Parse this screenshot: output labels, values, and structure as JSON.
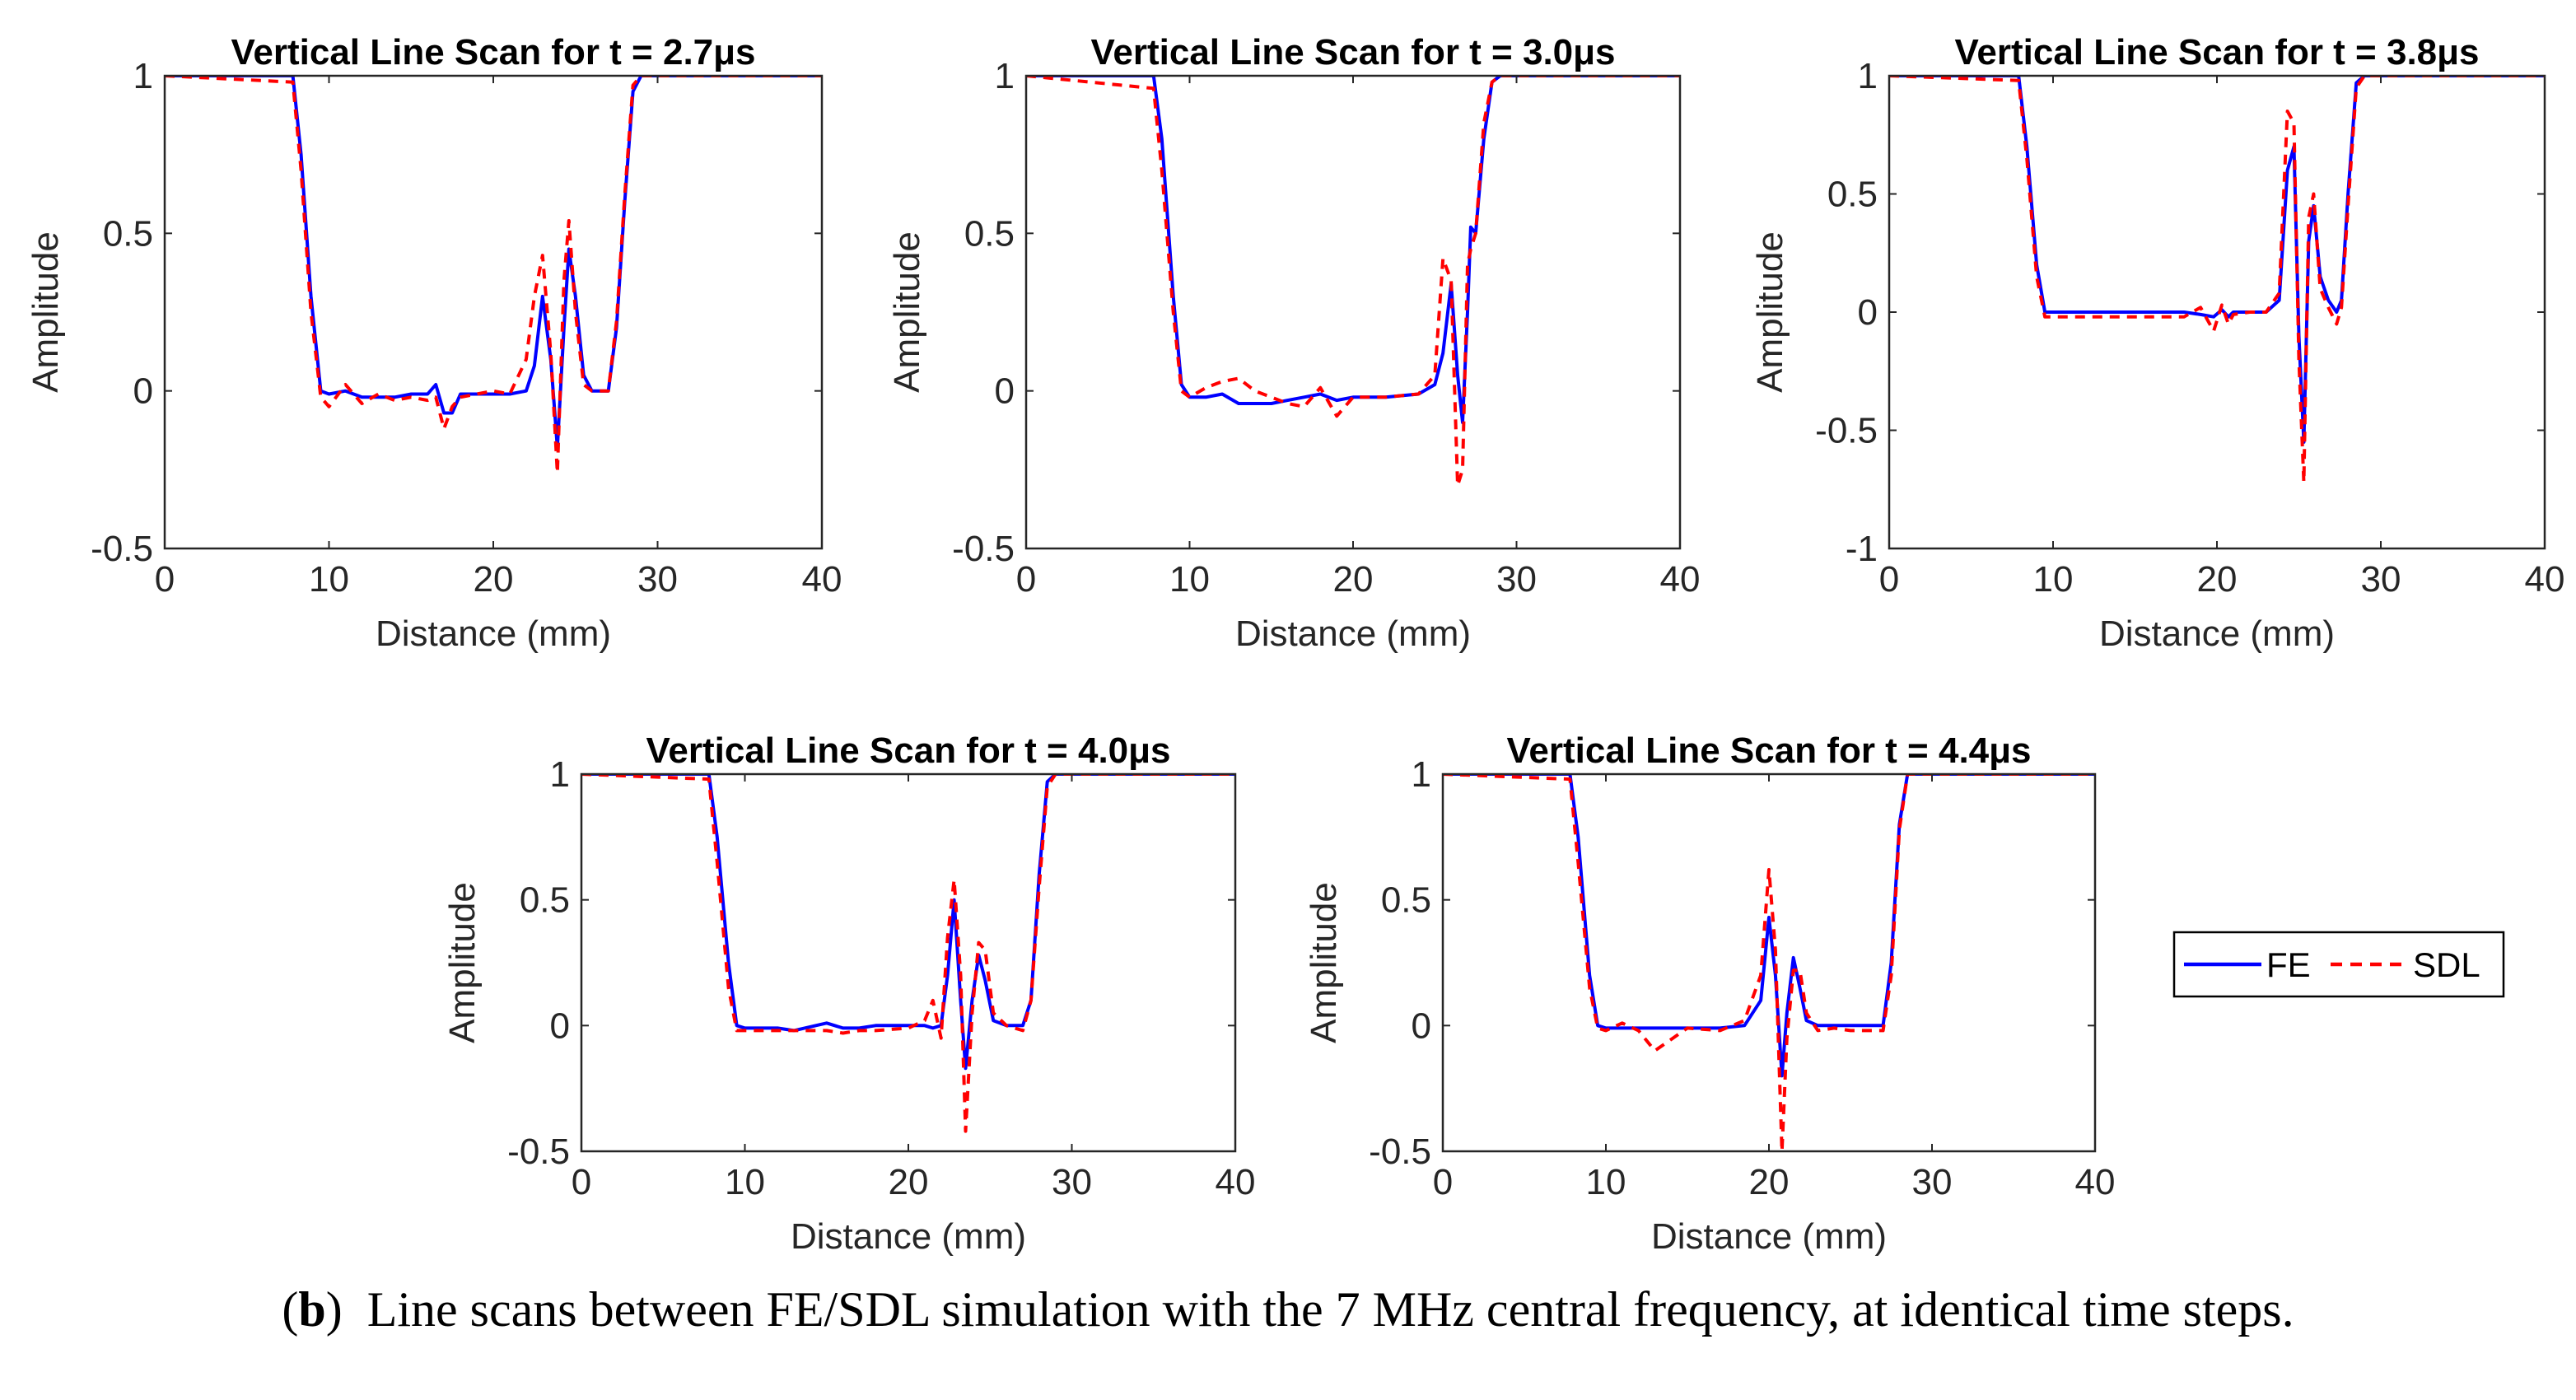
{
  "figure": {
    "caption_label": "b",
    "caption_text": "Line scans between FE/SDL simulation with the 7 MHz central frequency, at identical time steps."
  },
  "legend": {
    "entries": [
      {
        "name": "FE",
        "color": "#0000ff",
        "style": "solid"
      },
      {
        "name": "SDL",
        "color": "#ff0000",
        "style": "dashed"
      }
    ],
    "placement": "right of bottom row"
  },
  "chart_data": [
    {
      "type": "line",
      "title": "Vertical Line Scan for t = 2.7μs",
      "xlabel": "Distance (mm)",
      "ylabel": "Amplitude",
      "xlim": [
        0,
        40
      ],
      "ylim": [
        -0.5,
        1
      ],
      "xticks": [
        0,
        10,
        20,
        30,
        40
      ],
      "yticks": [
        -0.5,
        0,
        0.5,
        1
      ],
      "ytick_labels": [
        "-0.5",
        "0",
        "0.5",
        "1"
      ],
      "series": [
        {
          "name": "FE",
          "x": [
            0,
            7.8,
            8.3,
            8.9,
            9.5,
            10.0,
            11.0,
            12.0,
            13.0,
            14.0,
            15.0,
            16.0,
            16.5,
            17.0,
            17.5,
            18.0,
            20.0,
            21.0,
            22.0,
            22.5,
            23.0,
            23.5,
            23.9,
            24.3,
            24.6,
            25.0,
            25.5,
            26.0,
            27.0,
            27.5,
            28.0,
            28.5,
            29.0,
            40
          ],
          "y": [
            1,
            1,
            0.75,
            0.3,
            0,
            -0.01,
            0,
            -0.02,
            -0.02,
            -0.02,
            -0.01,
            -0.01,
            0.02,
            -0.07,
            -0.07,
            -0.01,
            -0.01,
            -0.01,
            0,
            0.08,
            0.3,
            0.1,
            -0.18,
            0.2,
            0.45,
            0.3,
            0.05,
            0,
            0,
            0.2,
            0.6,
            0.95,
            1,
            1
          ]
        },
        {
          "name": "SDL",
          "x": [
            0,
            7.8,
            8.3,
            8.9,
            9.5,
            10.0,
            11.0,
            12.0,
            13.0,
            14.0,
            15.0,
            16.0,
            16.5,
            17.0,
            17.5,
            18.0,
            20.0,
            21.0,
            22.0,
            22.5,
            23.0,
            23.5,
            23.9,
            24.3,
            24.6,
            25.0,
            25.5,
            26.0,
            27.0,
            27.5,
            28.0,
            28.5,
            29.0,
            40
          ],
          "y": [
            1,
            0.98,
            0.7,
            0.25,
            -0.02,
            -0.05,
            0.02,
            -0.04,
            -0.01,
            -0.03,
            -0.02,
            -0.03,
            -0.02,
            -0.12,
            -0.05,
            -0.02,
            0,
            -0.01,
            0.1,
            0.3,
            0.43,
            0.12,
            -0.26,
            0.35,
            0.54,
            0.25,
            0.02,
            0,
            0,
            0.22,
            0.62,
            0.97,
            1,
            1
          ]
        }
      ]
    },
    {
      "type": "line",
      "title": "Vertical Line Scan for t = 3.0μs",
      "xlabel": "Distance (mm)",
      "ylabel": "Amplitude",
      "xlim": [
        0,
        40
      ],
      "ylim": [
        -0.5,
        1
      ],
      "xticks": [
        0,
        10,
        20,
        30,
        40
      ],
      "yticks": [
        -0.5,
        0,
        0.5,
        1
      ],
      "ytick_labels": [
        "-0.5",
        "0",
        "0.5",
        "1"
      ],
      "series": [
        {
          "name": "FE",
          "x": [
            0,
            7.8,
            8.3,
            9.0,
            9.5,
            10.0,
            11.0,
            12.0,
            13.0,
            14.0,
            15.0,
            16.0,
            17.0,
            18.0,
            19.0,
            20.0,
            22.0,
            24.0,
            25.0,
            25.5,
            26.0,
            26.4,
            26.7,
            27.0,
            27.2,
            27.5,
            28.0,
            28.5,
            29.0,
            40
          ],
          "y": [
            1,
            1,
            0.8,
            0.3,
            0.02,
            -0.02,
            -0.02,
            -0.01,
            -0.04,
            -0.04,
            -0.04,
            -0.03,
            -0.02,
            -0.01,
            -0.03,
            -0.02,
            -0.02,
            -0.01,
            0.02,
            0.12,
            0.34,
            0.05,
            -0.1,
            0.25,
            0.52,
            0.5,
            0.8,
            0.98,
            1,
            1
          ]
        },
        {
          "name": "SDL",
          "x": [
            0,
            7.8,
            8.3,
            9.0,
            9.5,
            10.0,
            11.0,
            12.0,
            13.0,
            14.0,
            15.0,
            16.0,
            17.0,
            18.0,
            19.0,
            20.0,
            22.0,
            24.0,
            25.0,
            25.5,
            26.0,
            26.4,
            26.7,
            27.0,
            27.2,
            27.5,
            28.0,
            28.5,
            29.0,
            40
          ],
          "y": [
            1,
            0.96,
            0.7,
            0.25,
            0,
            -0.02,
            0.01,
            0.03,
            0.04,
            0,
            -0.02,
            -0.04,
            -0.05,
            0.01,
            -0.08,
            -0.02,
            -0.02,
            -0.01,
            0.05,
            0.42,
            0.35,
            -0.3,
            -0.25,
            0.4,
            0.45,
            0.5,
            0.85,
            0.98,
            1,
            1
          ]
        }
      ]
    },
    {
      "type": "line",
      "title": "Vertical Line Scan for t = 3.8μs",
      "xlabel": "Distance (mm)",
      "ylabel": "Amplitude",
      "xlim": [
        0,
        40
      ],
      "ylim": [
        -1,
        1
      ],
      "xticks": [
        0,
        10,
        20,
        30,
        40
      ],
      "yticks": [
        -1,
        -0.5,
        0,
        0.5,
        1
      ],
      "ytick_labels": [
        "-1",
        "-0.5",
        "0",
        "0.5",
        "1"
      ],
      "series": [
        {
          "name": "FE",
          "x": [
            0,
            7.9,
            8.4,
            9.0,
            9.5,
            10.0,
            12.0,
            14.0,
            16.0,
            18.0,
            19.0,
            19.8,
            20.3,
            20.7,
            21.0,
            22.0,
            23.0,
            23.8,
            24.3,
            24.7,
            25.0,
            25.3,
            25.6,
            25.9,
            26.3,
            26.8,
            27.3,
            27.6,
            28.0,
            28.5,
            29.0,
            40
          ],
          "y": [
            1,
            1,
            0.7,
            0.2,
            0,
            0,
            0,
            0,
            0,
            0,
            -0.01,
            -0.02,
            0.01,
            -0.02,
            0,
            0,
            0,
            0.05,
            0.6,
            0.7,
            -0.1,
            -0.55,
            0.3,
            0.45,
            0.15,
            0.05,
            0,
            0.05,
            0.5,
            0.97,
            1,
            1
          ]
        },
        {
          "name": "SDL",
          "x": [
            0,
            7.9,
            8.4,
            9.0,
            9.5,
            10.0,
            12.0,
            14.0,
            16.0,
            18.0,
            19.0,
            19.8,
            20.3,
            20.7,
            21.0,
            22.0,
            23.0,
            23.8,
            24.3,
            24.7,
            25.0,
            25.3,
            25.6,
            25.9,
            26.3,
            26.8,
            27.3,
            27.6,
            28.0,
            28.5,
            29.0,
            40
          ],
          "y": [
            1,
            0.98,
            0.65,
            0.15,
            -0.02,
            -0.02,
            -0.02,
            -0.02,
            -0.02,
            -0.02,
            0.02,
            -0.08,
            0.03,
            -0.05,
            -0.01,
            0,
            0,
            0.08,
            0.85,
            0.8,
            -0.2,
            -0.72,
            0.4,
            0.5,
            0.1,
            0.02,
            -0.05,
            0.02,
            0.45,
            0.95,
            1,
            1
          ]
        }
      ]
    },
    {
      "type": "line",
      "title": "Vertical Line Scan for t = 4.0μs",
      "xlabel": "Distance (mm)",
      "ylabel": "Amplitude",
      "xlim": [
        0,
        40
      ],
      "ylim": [
        -0.5,
        1
      ],
      "xticks": [
        0,
        10,
        20,
        30,
        40
      ],
      "yticks": [
        -0.5,
        0,
        0.5,
        1
      ],
      "ytick_labels": [
        "-0.5",
        "0",
        "0.5",
        "1"
      ],
      "series": [
        {
          "name": "FE",
          "x": [
            0,
            7.8,
            8.3,
            9.0,
            9.5,
            10.0,
            12.0,
            13.0,
            15.0,
            16.0,
            17.0,
            18.0,
            20.0,
            21.0,
            21.5,
            22.0,
            22.4,
            22.8,
            23.2,
            23.5,
            23.9,
            24.3,
            24.7,
            25.2,
            26.0,
            27.0,
            27.5,
            28.0,
            28.5,
            29.0,
            40
          ],
          "y": [
            1,
            1,
            0.75,
            0.25,
            0,
            -0.01,
            -0.01,
            -0.02,
            0.01,
            -0.01,
            -0.01,
            0,
            0,
            0,
            -0.01,
            0,
            0.2,
            0.5,
            0.1,
            -0.17,
            0.1,
            0.28,
            0.18,
            0.02,
            0,
            0,
            0.1,
            0.6,
            0.97,
            1,
            1
          ]
        },
        {
          "name": "SDL",
          "x": [
            0,
            7.8,
            8.3,
            9.0,
            9.5,
            10.0,
            12.0,
            13.0,
            15.0,
            16.0,
            17.0,
            18.0,
            20.0,
            21.0,
            21.5,
            22.0,
            22.4,
            22.8,
            23.2,
            23.5,
            23.9,
            24.3,
            24.7,
            25.2,
            26.0,
            27.0,
            27.5,
            28.0,
            28.5,
            29.0,
            40
          ],
          "y": [
            1,
            0.98,
            0.65,
            0.15,
            -0.02,
            -0.02,
            -0.02,
            -0.02,
            -0.02,
            -0.03,
            -0.02,
            -0.02,
            -0.01,
            0.02,
            0.1,
            -0.05,
            0.35,
            0.58,
            0.2,
            -0.42,
            0.05,
            0.33,
            0.3,
            0.05,
            0,
            -0.02,
            0.1,
            0.55,
            0.95,
            1,
            1
          ]
        }
      ]
    },
    {
      "type": "line",
      "title": "Vertical Line Scan for t = 4.4μs",
      "xlabel": "Distance (mm)",
      "ylabel": "Amplitude",
      "xlim": [
        0,
        40
      ],
      "ylim": [
        -0.5,
        1
      ],
      "xticks": [
        0,
        10,
        20,
        30,
        40
      ],
      "yticks": [
        -0.5,
        0,
        0.5,
        1
      ],
      "ytick_labels": [
        "-0.5",
        "0",
        "0.5",
        "1"
      ],
      "series": [
        {
          "name": "FE",
          "x": [
            0,
            7.8,
            8.3,
            9.0,
            9.5,
            10.0,
            11.0,
            12.0,
            13.0,
            15.0,
            17.0,
            18.5,
            19.5,
            20.0,
            20.4,
            20.8,
            21.1,
            21.5,
            21.9,
            22.3,
            23.0,
            24.0,
            25.0,
            27.0,
            27.5,
            28.0,
            28.5,
            29.0,
            40
          ],
          "y": [
            1,
            1,
            0.75,
            0.2,
            0,
            -0.01,
            -0.01,
            -0.01,
            -0.01,
            -0.01,
            -0.01,
            0,
            0.1,
            0.43,
            0.2,
            -0.2,
            0.05,
            0.27,
            0.15,
            0.02,
            0,
            0,
            0,
            0,
            0.25,
            0.8,
            1,
            1,
            1
          ]
        },
        {
          "name": "SDL",
          "x": [
            0,
            7.8,
            8.3,
            9.0,
            9.5,
            10.0,
            11.0,
            12.0,
            13.0,
            15.0,
            17.0,
            18.5,
            19.5,
            20.0,
            20.4,
            20.8,
            21.1,
            21.5,
            21.9,
            22.3,
            23.0,
            24.0,
            25.0,
            27.0,
            27.5,
            28.0,
            28.5,
            29.0,
            40
          ],
          "y": [
            1,
            0.98,
            0.65,
            0.15,
            -0.01,
            -0.02,
            0.01,
            -0.02,
            -0.1,
            -0.01,
            -0.02,
            0.02,
            0.2,
            0.62,
            0.3,
            -0.5,
            -0.05,
            0.22,
            0.22,
            0.05,
            -0.02,
            -0.01,
            -0.02,
            -0.02,
            0.2,
            0.78,
            1,
            1,
            1
          ]
        }
      ]
    }
  ]
}
